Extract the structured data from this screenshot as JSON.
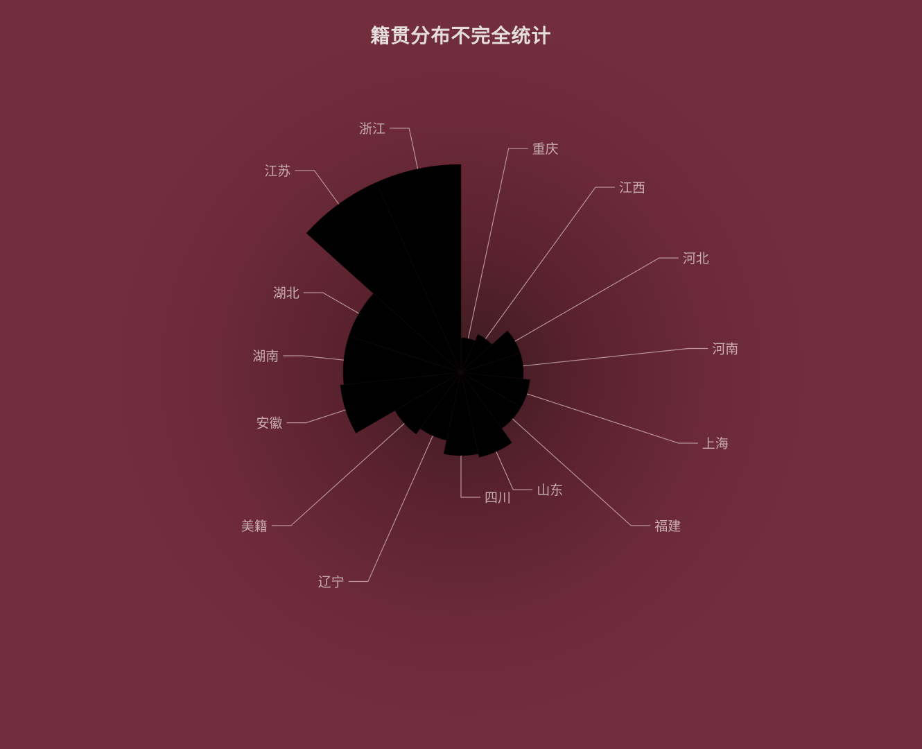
{
  "chart_data": {
    "type": "pie",
    "rose_type": "radius",
    "title": "籍贯分布不完全统计",
    "categories": [
      "浙江",
      "重庆",
      "江西",
      "河北",
      "河南",
      "上海",
      "福建",
      "山东",
      "四川",
      "辽宁",
      "美籍",
      "安徽",
      "湖南",
      "湖北",
      "江苏"
    ],
    "values": [
      30,
      5,
      6,
      9,
      9,
      10,
      10,
      12.5,
      12,
      10,
      11,
      17.5,
      17,
      17,
      30
    ],
    "colors": {
      "background": "#722e3c",
      "slice": "#000000",
      "label": "#c8acb0",
      "title": "#e6dede"
    }
  }
}
